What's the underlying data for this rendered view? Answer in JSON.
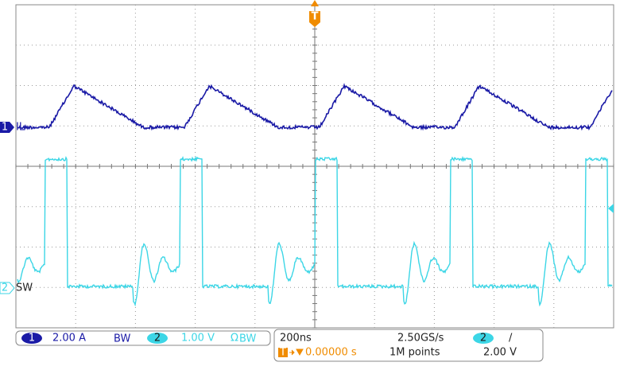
{
  "channels": [
    {
      "number": "1",
      "label": "IL",
      "scale": "2.00 A",
      "bandwidth_limit": "BW"
    },
    {
      "number": "2",
      "label": "SW",
      "scale": "1.00 V",
      "termination": "Ω",
      "bandwidth_limit": "BW"
    }
  ],
  "timebase": {
    "scale": "200ns",
    "sample_rate": "2.50GS/s",
    "record_length": "1M points",
    "trigger_position": "0.00000 s"
  },
  "trigger": {
    "marker": "T",
    "source": "2",
    "slope": "/",
    "level": "2.00 V"
  }
}
